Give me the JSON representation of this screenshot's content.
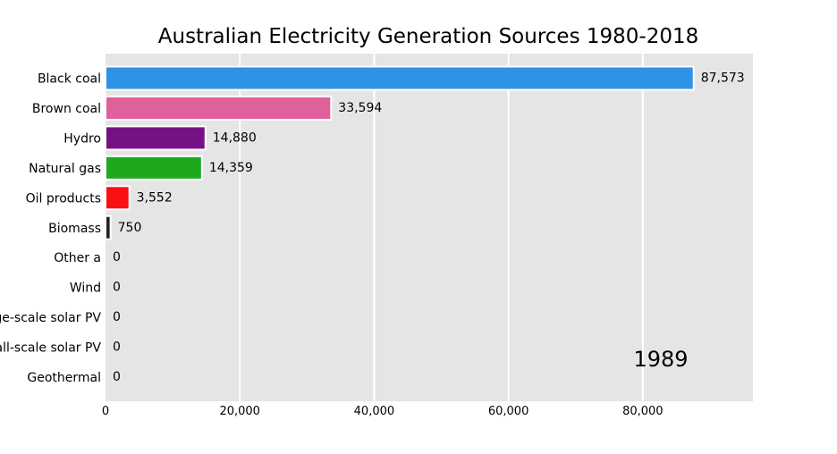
{
  "chart_data": {
    "type": "bar",
    "orientation": "horizontal",
    "title": "Australian Electricity Generation Sources 1980-2018",
    "year_label": "1989",
    "xlabel": "",
    "ylabel": "",
    "xlim": [
      0,
      96400
    ],
    "x_ticks": [
      0,
      20000,
      40000,
      60000,
      80000
    ],
    "x_tick_labels": [
      "0",
      "20,000",
      "40,000",
      "60,000",
      "80,000"
    ],
    "grid": true,
    "categories": [
      "Black coal",
      "Brown coal",
      "Hydro",
      "Natural gas",
      "Oil products",
      "Biomass",
      "Other a",
      "Wind",
      "Large-scale solar PV",
      "Small-scale solar PV",
      "Geothermal"
    ],
    "values": [
      87573,
      33594,
      14880,
      14359,
      3552,
      750,
      0,
      0,
      0,
      0,
      0
    ],
    "value_labels": [
      "87,573",
      "33,594",
      "14,880",
      "14,359",
      "3,552",
      "750",
      "0",
      "0",
      "0",
      "0",
      "0"
    ],
    "colors": [
      "#2f92e4",
      "#e0609c",
      "#761185",
      "#1ea81e",
      "#fa1010",
      "#222222",
      "#888888",
      "#888888",
      "#888888",
      "#888888",
      "#888888"
    ],
    "background_color": "#e5e5e5",
    "grid_color": "#ffffff"
  }
}
